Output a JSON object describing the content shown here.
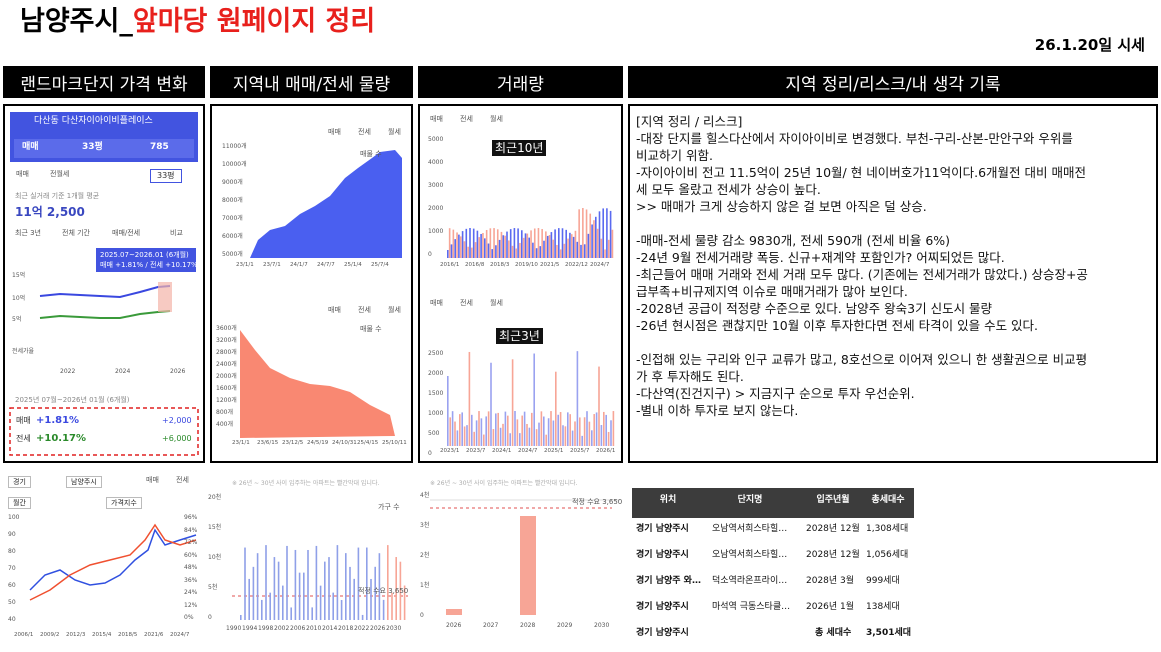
{
  "header": {
    "title_prefix": "남양주시_",
    "title_main": "앞마당 원페이지 정리",
    "date": "26.1.20일 시세"
  },
  "sections": [
    "랜드마크단지 가격 변화",
    "지역내 매매/전세 물량",
    "거래량",
    "지역 정리/리스크/내 생각 기록"
  ],
  "complex": {
    "name": "다산동 다산자이아이비플레이스",
    "tabs": [
      "매매",
      "33평",
      "785"
    ],
    "size": "33평",
    "type_tabs": [
      "매매",
      "전월세"
    ],
    "avg_label": "최근 실거래 기준 1개월 평균",
    "avg_price": "11억 2,500",
    "period_tabs": [
      "최근 3년",
      "전체 기간",
      "매매/전세",
      "비교"
    ],
    "tooltip": [
      "2025.07~2026.01 (6개월)",
      "매매 +1.81% / 전세 +10.17%"
    ],
    "yticks": [
      "15억",
      "10억",
      "5억",
      "전세가율"
    ],
    "xticks": [
      "2022",
      "2024",
      "2026"
    ],
    "summary_period": "2025년 07월~2026년 01월 (6개월)",
    "summary": [
      {
        "label": "매매",
        "change": "+1.81%",
        "amount": "+2,000"
      },
      {
        "label": "전세",
        "change": "+10.17%",
        "amount": "+6,000"
      }
    ]
  },
  "listings": {
    "legend": [
      "매매",
      "전세",
      "월세"
    ],
    "unit": "매물 수",
    "top": {
      "yticks": [
        "11000개",
        "10000개",
        "9000개",
        "8000개",
        "7000개",
        "6000개",
        "5000개"
      ],
      "xticks": [
        "23/1/1",
        "23/7/1",
        "24/1/7",
        "24/7/7",
        "25/1/4",
        "25/7/4"
      ]
    },
    "bottom": {
      "yticks": [
        "3600개",
        "3200개",
        "2800개",
        "2400개",
        "2000개",
        "1600개",
        "1200개",
        "800개",
        "400개"
      ],
      "xticks": [
        "23/1/1",
        "23/6/15",
        "23/12/5",
        "24/5/19",
        "24/10/31",
        "25/4/15",
        "25/10/11"
      ]
    }
  },
  "transactions": {
    "legend": [
      "매매",
      "전세",
      "월세"
    ],
    "top": {
      "label": "최근10년",
      "yticks": [
        "5000",
        "4000",
        "3000",
        "2000",
        "1000",
        "0"
      ],
      "xticks": [
        "2016/1",
        "2016/8",
        "2018/3",
        "2019/10",
        "2021/5",
        "2022/12",
        "2024/7"
      ]
    },
    "bottom": {
      "label": "최근3년",
      "yticks": [
        "2500",
        "2000",
        "1500",
        "1000",
        "500",
        "0"
      ],
      "xticks": [
        "2023/1",
        "2023/7",
        "2024/1",
        "2024/7",
        "2025/1",
        "2025/7",
        "2026/1"
      ]
    }
  },
  "notes": {
    "paragraphs": [
      [
        "[지역 정리 / 리스크]",
        "-대장 단지를 힐스다산에서 자이아이비로 변경했다. 부천-구리-산본-만안구와 우위를",
        "비교하기 위함.",
        "-자이아이비 전고 11.5억이 25년 10월/ 현 네이버호가11억이다.6개월전 대비 매매전",
        "세 모두 올랐고 전세가 상승이 높다.",
        ">> 매매가 크게 상승하지 않은 걸 보면 아직은 덜 상승."
      ],
      [
        "-매매-전세 물량 감소 9830개, 전세 590개 (전세 비율 6%)",
        "-24년 9월 전세거래량 폭등. 신규+재계약 포함인가? 어찌되었든 많다.",
        "-최근들어 매매 거래와 전세 거래 모두 많다. (기존에는 전세거래가 많았다.) 상승장+공",
        "급부족+비규제지역 이슈로 매매거래가 많아 보인다.",
        "-2028년 공급이 적정량 수준으로 있다. 남양주 왕숙3기 신도시 물량",
        "-26년 현시점은 괜찮지만 10월 이후 투자한다면 전세 타격이 있을 수도 있다."
      ],
      [
        "-인접해 있는 구리와 인구 교류가 많고, 8호선으로 이어져 있으니 한 생활권으로 비교평",
        "가 후 투자해도 된다.",
        "-다산역(진건지구) > 지금지구 순으로 투자 우선순위.",
        "-별내 이하 투자로 보지 않는다."
      ]
    ]
  },
  "index_chart": {
    "filters": [
      "경기",
      "남양주시",
      "월간",
      "가격지수"
    ],
    "legend": [
      "매매",
      "전세"
    ],
    "yticks": [
      "100",
      "90",
      "80",
      "70",
      "60",
      "50",
      "40"
    ],
    "y2ticks": [
      "96%",
      "84%",
      "72%",
      "60%",
      "48%",
      "36%",
      "24%",
      "12%",
      "0%"
    ],
    "xticks": [
      "2006/1",
      "2009/2",
      "2012/3",
      "2015/4",
      "2018/5",
      "2021/6",
      "2024/7"
    ]
  },
  "supply_long": {
    "note": "※ 26년 ~ 30년 사이 입주하는 아파트는 빨간막대 입니다.",
    "unit": "가구 수",
    "ref": "적정 수요 3,650",
    "yticks": [
      "20천",
      "15천",
      "10천",
      "5천",
      "0"
    ],
    "xticks": [
      "1990",
      "1994",
      "1998",
      "2002",
      "2006",
      "2010",
      "2014",
      "2018",
      "2022",
      "2026",
      "2030"
    ]
  },
  "supply_short": {
    "note": "※ 26년 ~ 30년 사이 입주하는 아파트는 빨간막대 입니다.",
    "ref": "적정 수요 3,650",
    "yticks": [
      "4천",
      "3천",
      "2천",
      "1천",
      "0"
    ],
    "xticks": [
      "2026",
      "2027",
      "2028",
      "2029",
      "2030"
    ]
  },
  "table": {
    "headers": [
      "위치",
      "단지명",
      "입주년월",
      "총세대수"
    ],
    "rows": [
      [
        "경기 남양주시",
        "오남역서희스타힐…",
        "2028년 12월",
        "1,308세대"
      ],
      [
        "경기 남양주시",
        "오남역서희스타힐…",
        "2028년 12월",
        "1,056세대"
      ],
      [
        "경기 남양주 와…",
        "덕소역라온프라이…",
        "2028년 3월",
        "999세대"
      ],
      [
        "경기 남양주시",
        "마석역 극동스타클…",
        "2026년 1월",
        "138세대"
      ]
    ],
    "total": {
      "location": "경기 남양주시",
      "label": "총 세대수",
      "value": "3,501세대"
    }
  }
}
